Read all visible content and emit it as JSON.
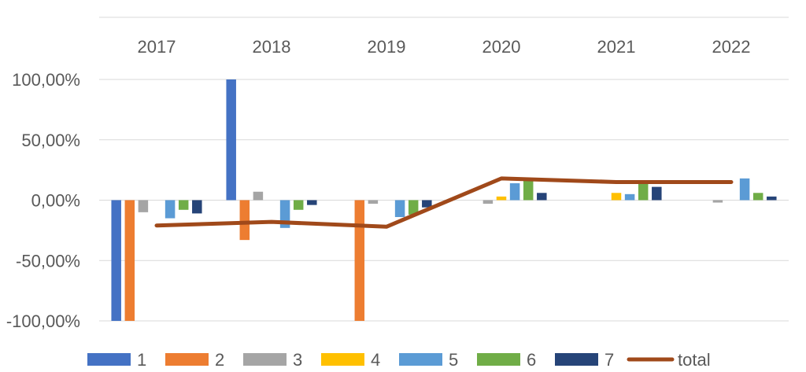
{
  "chart_data": {
    "type": "bar",
    "categories": [
      "2017",
      "2018",
      "2019",
      "2020",
      "2021",
      "2022"
    ],
    "x_axis_position": "top",
    "y_ticks": [
      "100,00%",
      "50,00%",
      "0,00%",
      "-50,00%",
      "-100,00%"
    ],
    "ylim": [
      -100,
      100
    ],
    "grid": true,
    "legend_position": "bottom",
    "series": [
      {
        "name": "1",
        "color": "#4472C4",
        "values": [
          -100,
          100,
          0,
          0,
          0,
          0
        ]
      },
      {
        "name": "2",
        "color": "#ED7D31",
        "values": [
          -100,
          -33,
          -100,
          0,
          0,
          0
        ]
      },
      {
        "name": "3",
        "color": "#A5A5A5",
        "values": [
          -10,
          7,
          -3,
          -3,
          0,
          -2
        ]
      },
      {
        "name": "4",
        "color": "#FFC000",
        "values": [
          0,
          0,
          0,
          3,
          6,
          0
        ]
      },
      {
        "name": "5",
        "color": "#5B9BD5",
        "values": [
          -15,
          -23,
          -14,
          14,
          5,
          18
        ]
      },
      {
        "name": "6",
        "color": "#70AD47",
        "values": [
          -8,
          -8,
          -12,
          16,
          14,
          6
        ]
      },
      {
        "name": "7",
        "color": "#264478",
        "values": [
          -11,
          -4,
          -6,
          6,
          11,
          3
        ]
      }
    ],
    "line_series": {
      "name": "total",
      "color": "#A0491A",
      "values": [
        -21,
        -18,
        -22,
        18,
        15,
        15
      ]
    }
  }
}
